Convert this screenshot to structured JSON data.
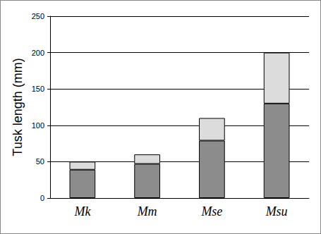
{
  "chart_data": {
    "type": "bar",
    "y_label": "Tusk length (mm)",
    "categories": [
      "Mk",
      "Mm",
      "Mse",
      "Msu"
    ],
    "series": [
      {
        "color": "#8c8c8c",
        "values": [
          39,
          47,
          79,
          130
        ]
      },
      {
        "color": "#dcdcdc",
        "values": [
          11,
          13,
          31,
          70
        ]
      }
    ],
    "stacked": true,
    "ylim": [
      0,
      250
    ],
    "yticks": [
      0,
      50,
      100,
      150,
      200,
      250
    ],
    "grid": true
  }
}
